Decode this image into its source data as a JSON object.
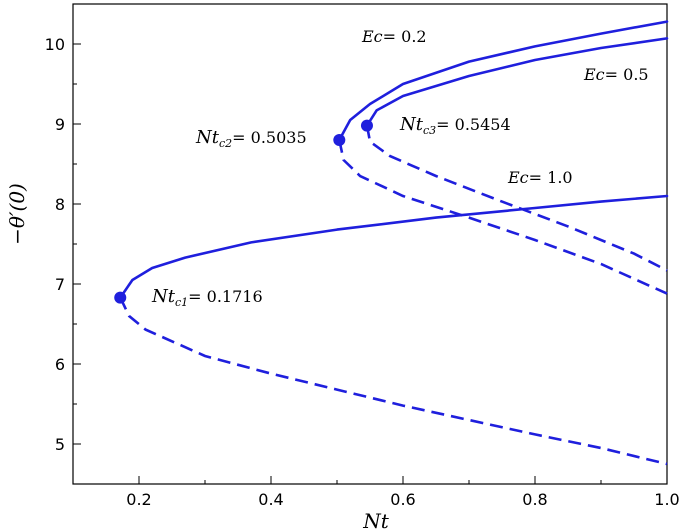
{
  "chart_data": {
    "type": "line",
    "xlabel": "Nt",
    "ylabel": "−θ′(0)",
    "xlim": [
      0.1,
      1.0
    ],
    "ylim": [
      4.5,
      10.5
    ],
    "xticks": [
      0.2,
      0.4,
      0.6,
      0.8,
      1.0
    ],
    "xtick_labels": [
      "0.2",
      "0.4",
      "0.6",
      "0.8",
      "1.0"
    ],
    "yticks": [
      5,
      6,
      7,
      8,
      9,
      10
    ],
    "ytick_labels": [
      "5",
      "6",
      "7",
      "8",
      "9",
      "10"
    ],
    "grid": false,
    "color": "#1f1fdd",
    "series": [
      {
        "name": "Ec = 0.2",
        "critical": {
          "x": 0.5035,
          "y": 8.8
        },
        "upper": [
          [
            0.5035,
            8.8
          ],
          [
            0.52,
            9.05
          ],
          [
            0.55,
            9.25
          ],
          [
            0.6,
            9.5
          ],
          [
            0.7,
            9.78
          ],
          [
            0.8,
            9.97
          ],
          [
            0.9,
            10.13
          ],
          [
            1.0,
            10.28
          ]
        ],
        "lower": [
          [
            0.5035,
            8.8
          ],
          [
            0.51,
            8.55
          ],
          [
            0.535,
            8.35
          ],
          [
            0.6,
            8.1
          ],
          [
            0.7,
            7.83
          ],
          [
            0.8,
            7.55
          ],
          [
            0.9,
            7.25
          ],
          [
            1.0,
            6.88
          ]
        ]
      },
      {
        "name": "Ec = 0.5",
        "critical": {
          "x": 0.5454,
          "y": 8.98
        },
        "upper": [
          [
            0.5454,
            8.98
          ],
          [
            0.56,
            9.17
          ],
          [
            0.6,
            9.35
          ],
          [
            0.7,
            9.6
          ],
          [
            0.8,
            9.8
          ],
          [
            0.9,
            9.95
          ],
          [
            1.0,
            10.07
          ]
        ],
        "lower": [
          [
            0.5454,
            8.98
          ],
          [
            0.55,
            8.78
          ],
          [
            0.58,
            8.6
          ],
          [
            0.65,
            8.35
          ],
          [
            0.75,
            8.03
          ],
          [
            0.85,
            7.72
          ],
          [
            0.95,
            7.38
          ],
          [
            1.0,
            7.17
          ]
        ]
      },
      {
        "name": "Ec = 1.0",
        "critical": {
          "x": 0.1716,
          "y": 6.83
        },
        "upper": [
          [
            0.1716,
            6.83
          ],
          [
            0.19,
            7.05
          ],
          [
            0.22,
            7.2
          ],
          [
            0.27,
            7.33
          ],
          [
            0.37,
            7.52
          ],
          [
            0.5,
            7.68
          ],
          [
            0.65,
            7.83
          ],
          [
            0.8,
            7.95
          ],
          [
            0.9,
            8.03
          ],
          [
            1.0,
            8.1
          ]
        ],
        "lower": [
          [
            0.1716,
            6.83
          ],
          [
            0.185,
            6.6
          ],
          [
            0.21,
            6.43
          ],
          [
            0.3,
            6.1
          ],
          [
            0.4,
            5.88
          ],
          [
            0.5,
            5.68
          ],
          [
            0.6,
            5.48
          ],
          [
            0.7,
            5.3
          ],
          [
            0.8,
            5.12
          ],
          [
            0.9,
            4.95
          ],
          [
            1.0,
            4.75
          ]
        ]
      }
    ],
    "annotations": {
      "ec02": {
        "pre": "Ec",
        "post": "= 0.2"
      },
      "ec05": {
        "pre": "Ec",
        "post": "= 0.5"
      },
      "ec10": {
        "pre": "Ec",
        "post": "= 1.0"
      },
      "ntc1": {
        "pre": "Nt",
        "sub": "c1",
        "post": "= 0.1716"
      },
      "ntc2": {
        "pre": "Nt",
        "sub": "c2",
        "post": "= 0.5035"
      },
      "ntc3": {
        "pre": "Nt",
        "sub": "c3",
        "post": "= 0.5454"
      }
    }
  }
}
